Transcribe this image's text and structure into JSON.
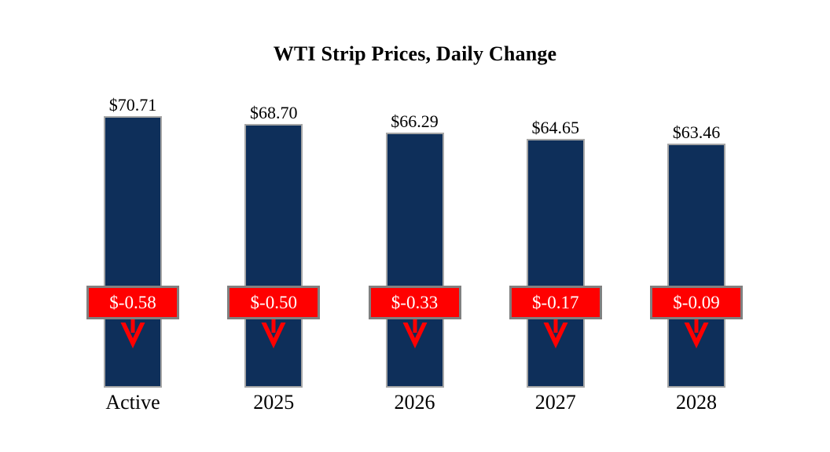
{
  "chart_data": {
    "type": "bar",
    "title": "WTI Strip Prices, Daily Change",
    "categories": [
      "Active",
      "2025",
      "2026",
      "2027",
      "2028"
    ],
    "series": [
      {
        "name": "strip_price",
        "values": [
          70.71,
          68.7,
          66.29,
          64.65,
          63.46
        ],
        "labels": [
          "$70.71",
          "$68.70",
          "$66.29",
          "$64.65",
          "$63.46"
        ]
      },
      {
        "name": "daily_change",
        "values": [
          -0.58,
          -0.5,
          -0.33,
          -0.17,
          -0.09
        ],
        "labels": [
          "$-0.58",
          "$-0.50",
          "$-0.33",
          "$-0.17",
          "$-0.09"
        ]
      }
    ],
    "ylim": [
      0,
      70.71
    ],
    "grid": false,
    "legend": "none",
    "colors": {
      "bar": "#0e2f5a",
      "bar_border": "#a6a6a6",
      "badge_bg": "#ff0000",
      "badge_border": "#808080",
      "badge_text": "#ffffff",
      "label_text": "#000000",
      "arrow": "#ff0000",
      "background": "#ffffff"
    }
  }
}
